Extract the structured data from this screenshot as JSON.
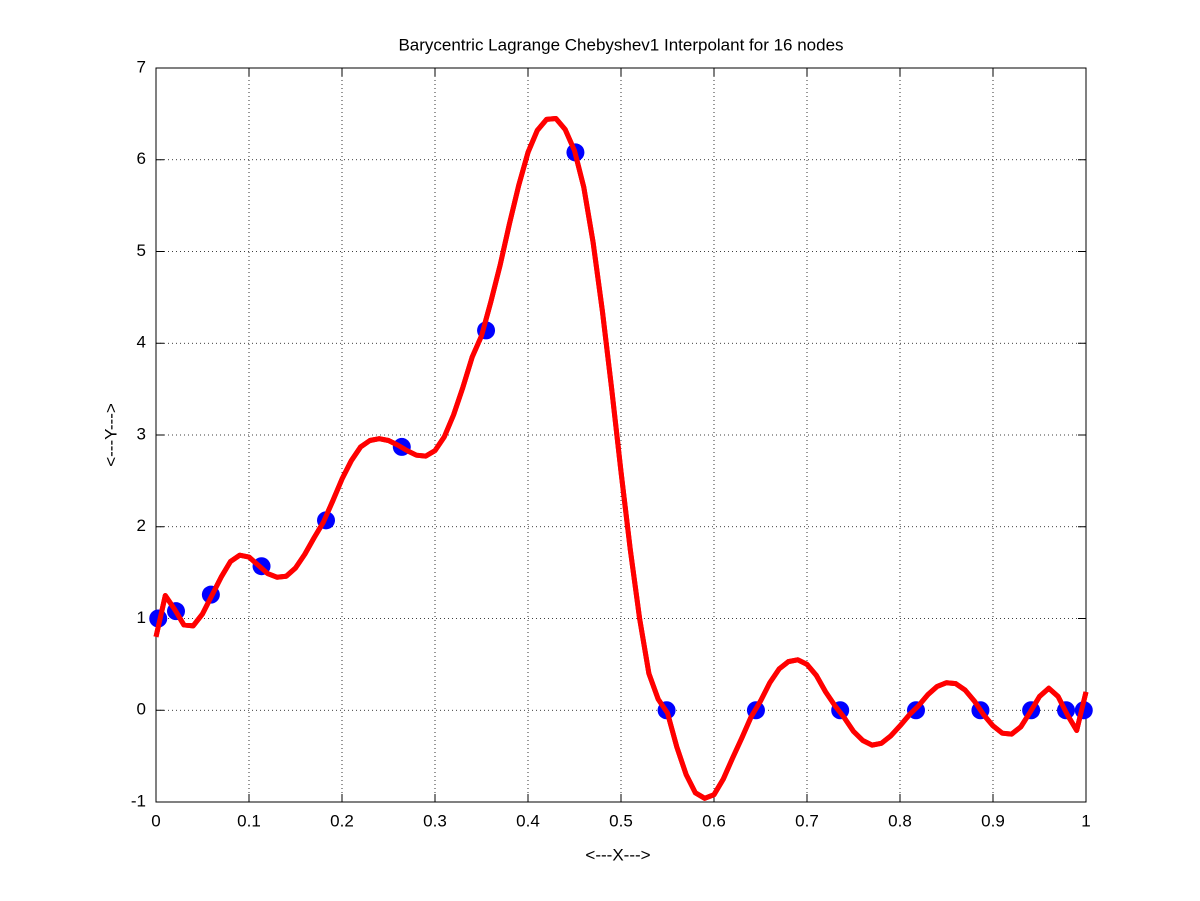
{
  "chart_data": {
    "type": "line",
    "title": "Barycentric Lagrange Chebyshev1 Interpolant for 16 nodes",
    "x_label": "<---X--->",
    "y_label": "<---Y--->",
    "xlim": [
      0,
      1
    ],
    "ylim": [
      -1,
      7
    ],
    "xticks": [
      0,
      0.1,
      0.2,
      0.3,
      0.4,
      0.5,
      0.6,
      0.7,
      0.8,
      0.9,
      1
    ],
    "yticks": [
      -1,
      0,
      1,
      2,
      3,
      4,
      5,
      6,
      7
    ],
    "grid": true,
    "series": [
      {
        "type": "line",
        "color": "#ff0000",
        "x": [
          0,
          0.01,
          0.02,
          0.03,
          0.04,
          0.05,
          0.06,
          0.07,
          0.08,
          0.09,
          0.1,
          0.11,
          0.12,
          0.13,
          0.14,
          0.15,
          0.16,
          0.17,
          0.18,
          0.19,
          0.2,
          0.21,
          0.22,
          0.23,
          0.24,
          0.25,
          0.26,
          0.27,
          0.28,
          0.29,
          0.3,
          0.31,
          0.32,
          0.33,
          0.34,
          0.35,
          0.36,
          0.37,
          0.38,
          0.39,
          0.4,
          0.41,
          0.42,
          0.43,
          0.44,
          0.45,
          0.46,
          0.47,
          0.48,
          0.49,
          0.5,
          0.51,
          0.52,
          0.53,
          0.54,
          0.55,
          0.56,
          0.57,
          0.58,
          0.59,
          0.6,
          0.61,
          0.62,
          0.63,
          0.64,
          0.65,
          0.66,
          0.67,
          0.68,
          0.69,
          0.7,
          0.71,
          0.72,
          0.73,
          0.74,
          0.75,
          0.76,
          0.77,
          0.78,
          0.79,
          0.8,
          0.81,
          0.82,
          0.83,
          0.84,
          0.85,
          0.86,
          0.87,
          0.88,
          0.89,
          0.9,
          0.91,
          0.92,
          0.93,
          0.94,
          0.95,
          0.96,
          0.97,
          0.98,
          0.99,
          1
        ],
        "values": [
          0.8,
          1.25,
          1.1,
          0.93,
          0.92,
          1.05,
          1.25,
          1.45,
          1.62,
          1.69,
          1.67,
          1.58,
          1.49,
          1.45,
          1.46,
          1.55,
          1.7,
          1.88,
          2.05,
          2.28,
          2.52,
          2.72,
          2.87,
          2.94,
          2.96,
          2.94,
          2.89,
          2.83,
          2.78,
          2.77,
          2.83,
          2.98,
          3.22,
          3.52,
          3.85,
          4.08,
          4.45,
          4.85,
          5.3,
          5.72,
          6.08,
          6.32,
          6.44,
          6.45,
          6.33,
          6.1,
          5.7,
          5.1,
          4.35,
          3.5,
          2.6,
          1.75,
          1.0,
          0.4,
          0.12,
          -0.03,
          -0.4,
          -0.7,
          -0.9,
          -0.96,
          -0.92,
          -0.75,
          -0.52,
          -0.3,
          -0.07,
          0.1,
          0.3,
          0.45,
          0.53,
          0.55,
          0.5,
          0.38,
          0.2,
          0.05,
          -0.08,
          -0.23,
          -0.33,
          -0.38,
          -0.36,
          -0.28,
          -0.17,
          -0.05,
          0.05,
          0.17,
          0.26,
          0.3,
          0.29,
          0.22,
          0.1,
          -0.05,
          -0.17,
          -0.25,
          -0.26,
          -0.18,
          -0.02,
          0.15,
          0.24,
          0.15,
          -0.05,
          -0.22,
          0.2
        ]
      },
      {
        "type": "scatter",
        "color": "#0000ff",
        "x": [
          0.0024,
          0.0215,
          0.059,
          0.1135,
          0.1828,
          0.2643,
          0.3549,
          0.451,
          0.549,
          0.6451,
          0.7357,
          0.8172,
          0.8865,
          0.941,
          0.9785,
          0.9976
        ],
        "values": [
          1.0,
          1.08,
          1.26,
          1.57,
          2.07,
          2.87,
          4.14,
          6.08,
          0,
          0,
          0,
          0,
          0,
          0,
          0,
          0
        ]
      }
    ]
  }
}
